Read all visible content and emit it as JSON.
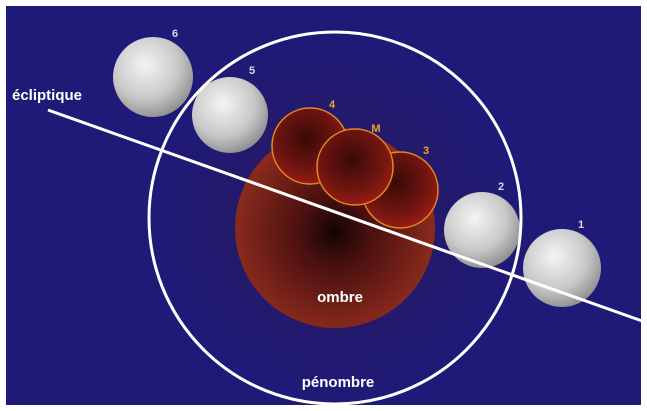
{
  "labels": {
    "ecliptic": "écliptique",
    "umbra": "ombre",
    "penumbra": "pénombre"
  },
  "moons": [
    {
      "label": "6"
    },
    {
      "label": "5"
    },
    {
      "label": "4"
    },
    {
      "label": "M"
    },
    {
      "label": "3"
    },
    {
      "label": "2"
    },
    {
      "label": "1"
    }
  ]
}
